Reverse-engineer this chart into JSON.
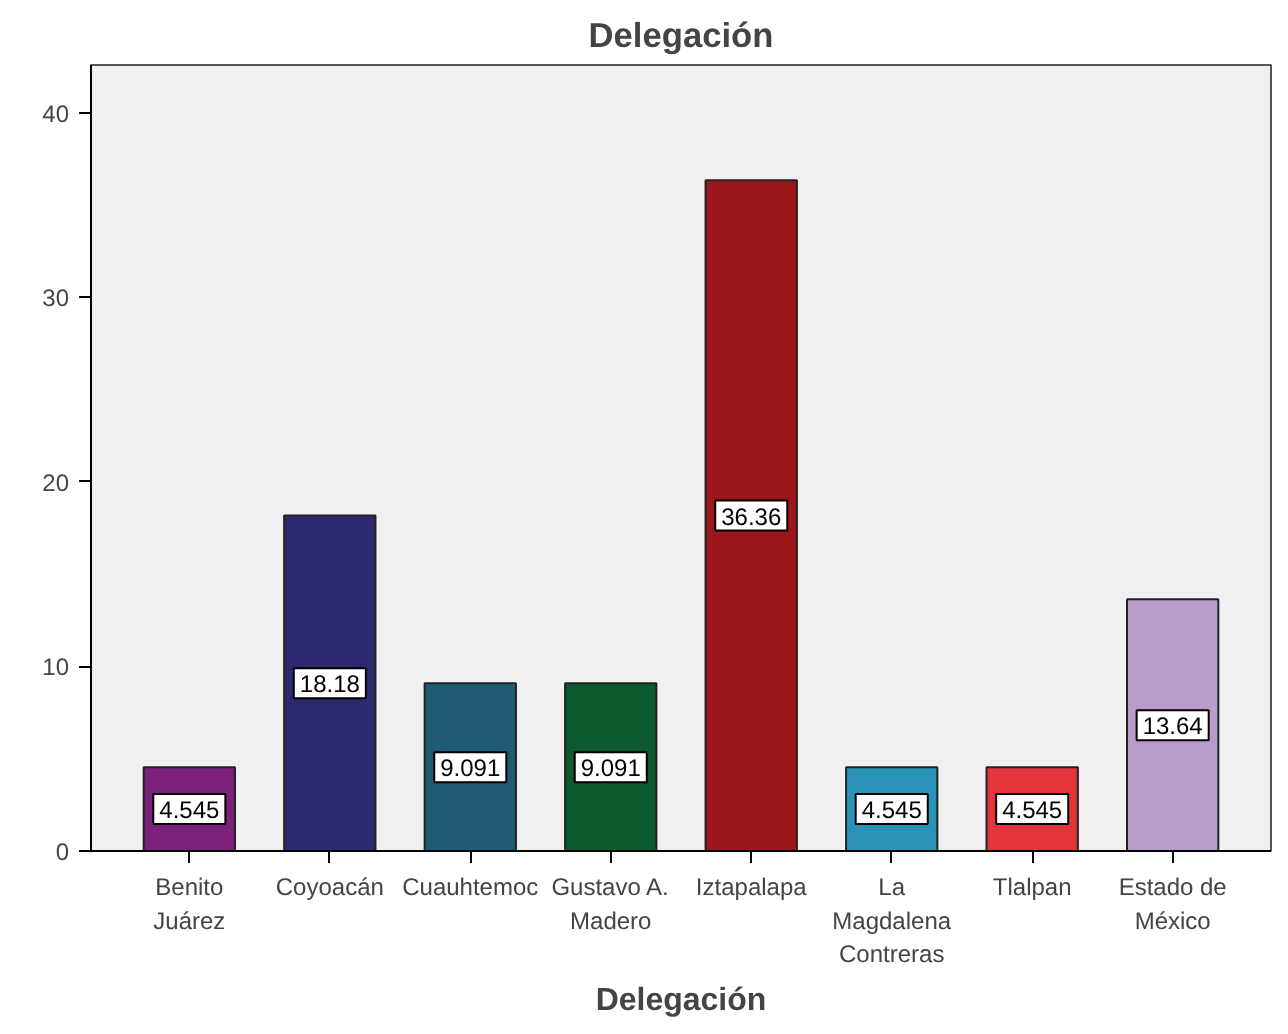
{
  "chart_data": {
    "type": "bar",
    "title": "Delegación",
    "xlabel": "Delegación",
    "categories": [
      "Benito Juárez",
      "Coyoacán",
      "Cuauhtemoc",
      "Gustavo A. Madero",
      "Iztapalapa",
      "La Magdalena Contreras",
      "Tlalpan",
      "Estado de México"
    ],
    "values": [
      4.545,
      18.18,
      9.091,
      9.091,
      36.36,
      4.545,
      4.545,
      13.64
    ],
    "colors": [
      "#7b217c",
      "#2b2a70",
      "#1f5b74",
      "#0d5930",
      "#9c171c",
      "#2a93b5",
      "#e6343c",
      "#b89ccb"
    ],
    "data_labels": true,
    "ylim": [
      0,
      42.6
    ],
    "yticks": [
      0,
      10,
      20,
      30,
      40
    ],
    "grid": false
  }
}
